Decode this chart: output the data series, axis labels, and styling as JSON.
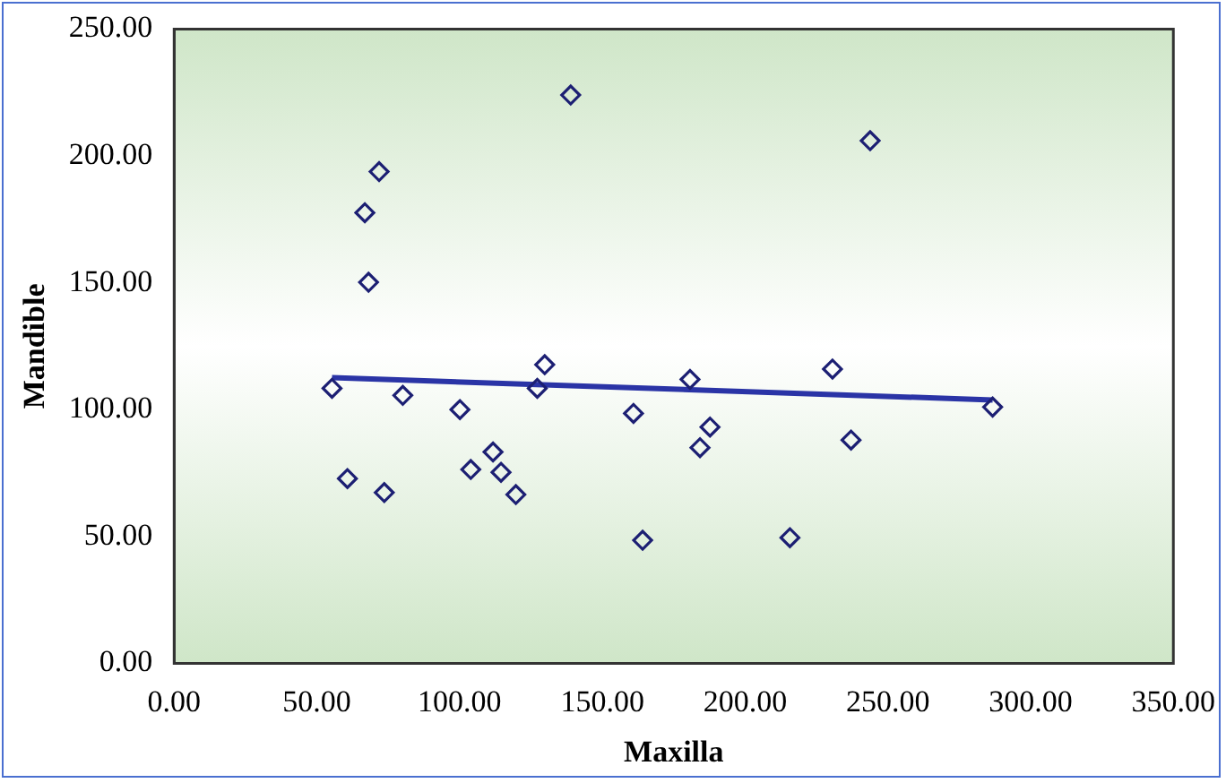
{
  "chart_data": {
    "type": "scatter",
    "xlabel": "Maxilla",
    "ylabel": "Mandible",
    "xlim": [
      0,
      350
    ],
    "ylim": [
      0,
      250
    ],
    "xticks": [
      {
        "value": 0,
        "label": "0.00"
      },
      {
        "value": 50,
        "label": "50.00"
      },
      {
        "value": 100,
        "label": "100.00"
      },
      {
        "value": 150,
        "label": "150.00"
      },
      {
        "value": 200,
        "label": "200.00"
      },
      {
        "value": 250,
        "label": "250.00"
      },
      {
        "value": 300,
        "label": "300.00"
      },
      {
        "value": 350,
        "label": "350.00"
      }
    ],
    "yticks": [
      {
        "value": 0,
        "label": "0.00"
      },
      {
        "value": 50,
        "label": "50.00"
      },
      {
        "value": 100,
        "label": "100.00"
      },
      {
        "value": 150,
        "label": "150.00"
      },
      {
        "value": 200,
        "label": "200.00"
      },
      {
        "value": 250,
        "label": "250.00"
      }
    ],
    "grid": false,
    "legend": false,
    "marker": "diamond",
    "series": [
      {
        "type": "scatter",
        "color": "#1c1f73",
        "x": [
          55.3,
          60.7,
          71.8,
          66.8,
          68.1,
          73.6,
          80.1,
          100.1,
          103.9,
          111.7,
          114.5,
          119.7,
          127.2,
          129.8,
          138.9,
          160.9,
          164.1,
          180.7,
          184.2,
          187.7,
          243.8,
          215.7,
          230.6,
          237.1,
          286.7
        ],
        "values": [
          108.4,
          72.8,
          193.8,
          177.6,
          150.2,
          67.3,
          105.6,
          100,
          76.4,
          83.3,
          75.3,
          66.5,
          108.4,
          117.7,
          224,
          98.5,
          48.5,
          111.9,
          85,
          93.1,
          206,
          49.5,
          116,
          88,
          101
        ]
      },
      {
        "type": "line",
        "color": "#2a34a6",
        "marker": "none",
        "line_style": "solid",
        "x": [
          55.3,
          286.7
        ],
        "values": [
          112.6,
          103.8
        ]
      }
    ]
  }
}
